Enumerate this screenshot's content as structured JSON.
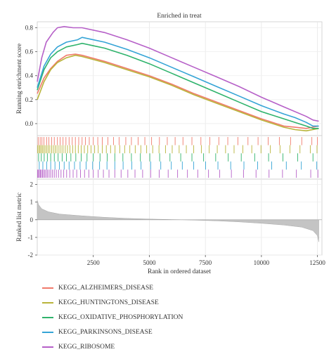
{
  "chart_data": {
    "type": "line",
    "title": "Enriched in treat",
    "xlabel": "Rank in ordered dataset",
    "x_ticks": [
      2500,
      5000,
      7500,
      10000,
      12500
    ],
    "xlim": [
      0,
      12700
    ],
    "panels": {
      "running_score": {
        "ylabel": "Running enrichment score",
        "ylim": [
          -0.1,
          0.85
        ],
        "y_ticks": [
          0.0,
          0.2,
          0.4,
          0.6,
          0.8
        ],
        "y_tick_labels": [
          "0.0",
          "0.2",
          "0.4",
          "0.6",
          "0.8"
        ]
      },
      "hit_ticks": {
        "grid": "vertical"
      },
      "ranked_metric": {
        "ylabel": "Ranked list metric",
        "ylim": [
          -2,
          2.3
        ],
        "y_ticks": [
          -2,
          -1,
          0,
          1,
          2
        ],
        "y_tick_labels": [
          "-2",
          "-1",
          "0",
          "1",
          "2"
        ],
        "fill_color": "#c4c4c4",
        "points": [
          [
            1,
            1.1
          ],
          [
            60,
            0.85
          ],
          [
            200,
            0.62
          ],
          [
            500,
            0.45
          ],
          [
            1000,
            0.32
          ],
          [
            2000,
            0.22
          ],
          [
            3000,
            0.14
          ],
          [
            4000,
            0.08
          ],
          [
            5000,
            0.04
          ],
          [
            6000,
            0.01
          ],
          [
            6500,
            0.0
          ],
          [
            7000,
            -0.02
          ],
          [
            8000,
            -0.06
          ],
          [
            9000,
            -0.12
          ],
          [
            10000,
            -0.2
          ],
          [
            11000,
            -0.3
          ],
          [
            11800,
            -0.42
          ],
          [
            12300,
            -0.62
          ],
          [
            12500,
            -0.9
          ],
          [
            12560,
            -1.25
          ]
        ]
      }
    },
    "series": [
      {
        "name": "KEGG_ALZHEIMERS_DISEASE",
        "color": "#f07a6b",
        "points": [
          [
            1,
            0.25
          ],
          [
            300,
            0.38
          ],
          [
            600,
            0.46
          ],
          [
            900,
            0.52
          ],
          [
            1300,
            0.57
          ],
          [
            1700,
            0.58
          ],
          [
            2000,
            0.57
          ],
          [
            3000,
            0.52
          ],
          [
            4000,
            0.46
          ],
          [
            5000,
            0.4
          ],
          [
            6000,
            0.33
          ],
          [
            7000,
            0.25
          ],
          [
            8000,
            0.18
          ],
          [
            9000,
            0.11
          ],
          [
            10000,
            0.04
          ],
          [
            10500,
            0.01
          ],
          [
            11000,
            -0.02
          ],
          [
            11500,
            -0.03
          ],
          [
            12000,
            -0.04
          ],
          [
            12560,
            -0.02
          ]
        ],
        "hits": [
          40,
          130,
          210,
          300,
          420,
          520,
          640,
          760,
          900,
          1020,
          1150,
          1280,
          1420,
          1560,
          1700,
          1850,
          2000,
          2150,
          2320,
          2500,
          2700,
          2900,
          3150,
          3400,
          3650,
          3950,
          4200,
          4500,
          4800,
          5100,
          5450,
          5800,
          6150,
          6500,
          6900,
          7300,
          7700,
          8100,
          8500,
          8950,
          9400,
          9850,
          10300,
          10800,
          11300,
          11800,
          12250,
          12500
        ]
      },
      {
        "name": "KEGG_HUNTINGTONS_DISEASE",
        "color": "#b9b43a",
        "points": [
          [
            1,
            0.2
          ],
          [
            300,
            0.35
          ],
          [
            600,
            0.45
          ],
          [
            900,
            0.51
          ],
          [
            1300,
            0.55
          ],
          [
            1700,
            0.57
          ],
          [
            2000,
            0.56
          ],
          [
            3000,
            0.51
          ],
          [
            4000,
            0.45
          ],
          [
            5000,
            0.39
          ],
          [
            6000,
            0.32
          ],
          [
            7000,
            0.24
          ],
          [
            8000,
            0.17
          ],
          [
            9000,
            0.1
          ],
          [
            10000,
            0.03
          ],
          [
            10500,
            0.0
          ],
          [
            11000,
            -0.03
          ],
          [
            11500,
            -0.05
          ],
          [
            12000,
            -0.06
          ],
          [
            12560,
            -0.04
          ]
        ],
        "hits": [
          20,
          70,
          120,
          170,
          230,
          290,
          350,
          420,
          490,
          560,
          640,
          720,
          800,
          880,
          970,
          1060,
          1150,
          1250,
          1350,
          1460,
          1580,
          1700,
          1830,
          1960,
          2100,
          2250,
          2400,
          2560,
          2720,
          2900,
          3080,
          3270,
          3470,
          3680,
          3900,
          4130,
          4370,
          4620,
          4880,
          5150,
          5430,
          5720,
          6020,
          6330,
          6650,
          6980,
          7320,
          7670,
          8030,
          8400,
          8780,
          9170,
          9570,
          9980,
          10400,
          10830,
          11270,
          11720,
          12180,
          12480
        ]
      },
      {
        "name": "KEGG_OXIDATIVE_PHOSPHORYLATION",
        "color": "#2fb36c",
        "points": [
          [
            1,
            0.28
          ],
          [
            300,
            0.45
          ],
          [
            600,
            0.55
          ],
          [
            900,
            0.6
          ],
          [
            1300,
            0.64
          ],
          [
            1800,
            0.66
          ],
          [
            2000,
            0.67
          ],
          [
            3000,
            0.63
          ],
          [
            4000,
            0.57
          ],
          [
            5000,
            0.5
          ],
          [
            6000,
            0.42
          ],
          [
            7000,
            0.34
          ],
          [
            8000,
            0.26
          ],
          [
            9000,
            0.18
          ],
          [
            10000,
            0.1
          ],
          [
            11000,
            0.04
          ],
          [
            11500,
            0.01
          ],
          [
            12000,
            -0.02
          ],
          [
            12300,
            -0.04
          ],
          [
            12560,
            -0.04
          ]
        ],
        "hits": [
          60,
          180,
          310,
          450,
          600,
          760,
          930,
          1110,
          1300,
          1500,
          1720,
          1960,
          2220,
          2500,
          2800,
          3120,
          3460,
          3820,
          4200,
          4600,
          5020,
          5460,
          5920,
          6400,
          6900,
          7420,
          7960,
          8520,
          9100,
          9700,
          10320,
          10960,
          11620,
          12300
        ]
      },
      {
        "name": "KEGG_PARKINSONS_DISEASE",
        "color": "#35a4d6",
        "points": [
          [
            1,
            0.3
          ],
          [
            300,
            0.48
          ],
          [
            600,
            0.58
          ],
          [
            900,
            0.64
          ],
          [
            1300,
            0.68
          ],
          [
            1800,
            0.7
          ],
          [
            2000,
            0.72
          ],
          [
            3000,
            0.68
          ],
          [
            4000,
            0.62
          ],
          [
            5000,
            0.55
          ],
          [
            6000,
            0.47
          ],
          [
            7000,
            0.39
          ],
          [
            8000,
            0.31
          ],
          [
            9000,
            0.23
          ],
          [
            10000,
            0.15
          ],
          [
            11000,
            0.08
          ],
          [
            11500,
            0.05
          ],
          [
            12000,
            0.01
          ],
          [
            12300,
            -0.02
          ],
          [
            12560,
            -0.02
          ]
        ],
        "hits": [
          90,
          250,
          420,
          600,
          790,
          990,
          1200,
          1420,
          1660,
          1910,
          2180,
          2470,
          2780,
          3110,
          3460,
          3830,
          4220,
          4630,
          5060,
          5510,
          5980,
          6470,
          6980,
          7510,
          8060,
          8630,
          9220,
          9830,
          10460,
          11110,
          11780,
          12470
        ]
      },
      {
        "name": "KEGG_RIBOSOME",
        "color": "#b660c8",
        "points": [
          [
            1,
            0.35
          ],
          [
            200,
            0.55
          ],
          [
            400,
            0.68
          ],
          [
            700,
            0.76
          ],
          [
            900,
            0.8
          ],
          [
            1200,
            0.81
          ],
          [
            1600,
            0.8
          ],
          [
            2000,
            0.8
          ],
          [
            3000,
            0.76
          ],
          [
            4000,
            0.7
          ],
          [
            5000,
            0.63
          ],
          [
            6000,
            0.55
          ],
          [
            7000,
            0.47
          ],
          [
            8000,
            0.39
          ],
          [
            9000,
            0.31
          ],
          [
            10000,
            0.22
          ],
          [
            11000,
            0.14
          ],
          [
            12000,
            0.06
          ],
          [
            12300,
            0.03
          ],
          [
            12560,
            0.02
          ]
        ],
        "hits": [
          15,
          55,
          95,
          140,
          185,
          235,
          285,
          340,
          400,
          460,
          530,
          600,
          680,
          760,
          850,
          950,
          1060,
          1180,
          1310,
          1450,
          1600,
          1760,
          1930,
          2110,
          2300,
          2500,
          2720,
          2950,
          3200,
          3460,
          3740,
          4040,
          4360,
          4700,
          5060,
          5440,
          5840,
          6260,
          6700,
          7160,
          7640,
          8140,
          8660,
          9200,
          9760,
          10340,
          10940,
          11560,
          12200,
          12520
        ]
      }
    ]
  }
}
